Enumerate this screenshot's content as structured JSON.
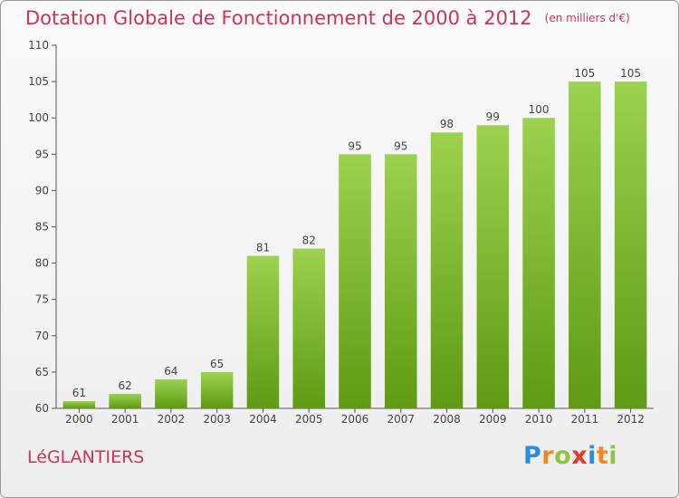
{
  "title": "Dotation Globale de Fonctionnement de 2000 à 2012",
  "unit": "(en milliers d'€)",
  "commune": "LéGLANTIERS",
  "logo_letters": [
    "P",
    "r",
    "o",
    "x",
    "i",
    "t",
    "i"
  ],
  "logo_colors": [
    "#2a8fd8",
    "#f08a1c",
    "#8cc63f",
    "#e8342a",
    "#2a8fd8",
    "#f08a1c",
    "#8cc63f"
  ],
  "colors": {
    "bar_top": "#9dd150",
    "bar_bottom": "#5f9a12",
    "title": "#cc3355"
  },
  "chart_data": {
    "type": "bar",
    "title": "Dotation Globale de Fonctionnement de 2000 à 2012",
    "subtitle": "(en milliers d'€)",
    "categories": [
      "2000",
      "2001",
      "2002",
      "2003",
      "2004",
      "2005",
      "2006",
      "2007",
      "2008",
      "2009",
      "2010",
      "2011",
      "2012"
    ],
    "values": [
      61,
      62,
      64,
      65,
      81,
      82,
      95,
      95,
      98,
      99,
      100,
      105,
      105
    ],
    "ylim": [
      60,
      110
    ],
    "yticks": [
      60,
      65,
      70,
      75,
      80,
      85,
      90,
      95,
      100,
      105,
      110
    ],
    "grid": false,
    "legend": "none"
  }
}
